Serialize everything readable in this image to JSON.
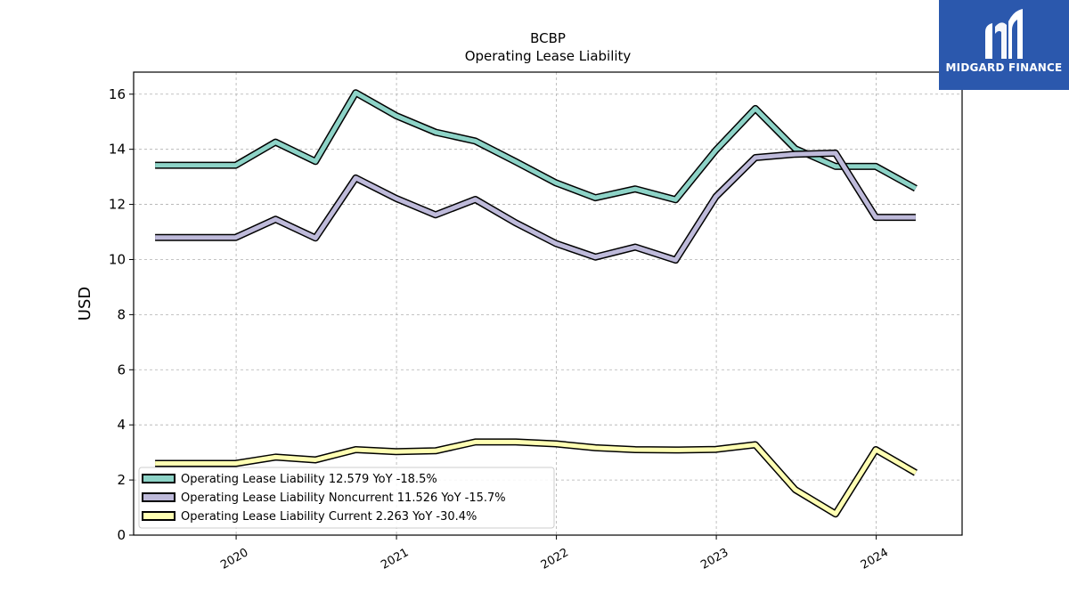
{
  "brand": {
    "name": "MIDGARD FINANCE",
    "logo_icon": "midgard-logo-icon",
    "color": "#2b58ad"
  },
  "chart_data": {
    "type": "line",
    "title": "BCBP",
    "subtitle": "Operating Lease Liability",
    "ylabel": "USD",
    "xlabel": "",
    "ylim": [
      0,
      16.8
    ],
    "yticks": [
      0,
      2,
      4,
      6,
      8,
      10,
      12,
      14,
      16
    ],
    "xlim": [
      "2019-05-12",
      "2024-07-15"
    ],
    "xticks": [
      {
        "date": "2020-01-01",
        "label": "2020"
      },
      {
        "date": "2021-01-01",
        "label": "2021"
      },
      {
        "date": "2022-01-01",
        "label": "2022"
      },
      {
        "date": "2023-01-01",
        "label": "2023"
      },
      {
        "date": "2024-01-01",
        "label": "2024"
      }
    ],
    "grid": true,
    "legend_position": "lower-left",
    "x": [
      "2019-06-30",
      "2019-09-30",
      "2019-12-31",
      "2020-03-31",
      "2020-06-30",
      "2020-09-30",
      "2020-12-31",
      "2021-03-31",
      "2021-06-30",
      "2021-09-30",
      "2021-12-31",
      "2022-03-31",
      "2022-06-30",
      "2022-09-30",
      "2022-12-31",
      "2023-03-31",
      "2023-06-30",
      "2023-09-30",
      "2023-12-31",
      "2024-03-31"
    ],
    "series": [
      {
        "name": "Operating Lease Liability",
        "legend": "Operating Lease Liability  12.579 YoY -18.5%",
        "color": "#8dd3c7",
        "values": [
          13.42,
          13.42,
          13.42,
          14.26,
          13.56,
          16.05,
          15.22,
          14.62,
          14.3,
          13.55,
          12.78,
          12.24,
          12.56,
          12.17,
          13.97,
          15.48,
          14.02,
          13.38,
          13.38,
          12.58
        ]
      },
      {
        "name": "Operating Lease Liability Noncurrent",
        "legend": "Operating Lease Liability Noncurrent  11.526 YoY -15.7%",
        "color": "#bebada",
        "values": [
          10.8,
          10.8,
          10.8,
          11.46,
          10.78,
          12.96,
          12.22,
          11.62,
          12.18,
          11.33,
          10.58,
          10.09,
          10.45,
          9.98,
          12.28,
          13.7,
          13.82,
          13.86,
          11.53,
          11.53
        ]
      },
      {
        "name": "Operating Lease Liability Current",
        "legend": "Operating Lease Liability Current  2.263 YoY -30.4%",
        "color": "#ffffb3",
        "values": [
          2.6,
          2.6,
          2.6,
          2.83,
          2.73,
          3.1,
          3.03,
          3.06,
          3.38,
          3.38,
          3.31,
          3.17,
          3.1,
          3.09,
          3.11,
          3.28,
          1.65,
          0.77,
          3.1,
          2.26
        ]
      }
    ]
  }
}
